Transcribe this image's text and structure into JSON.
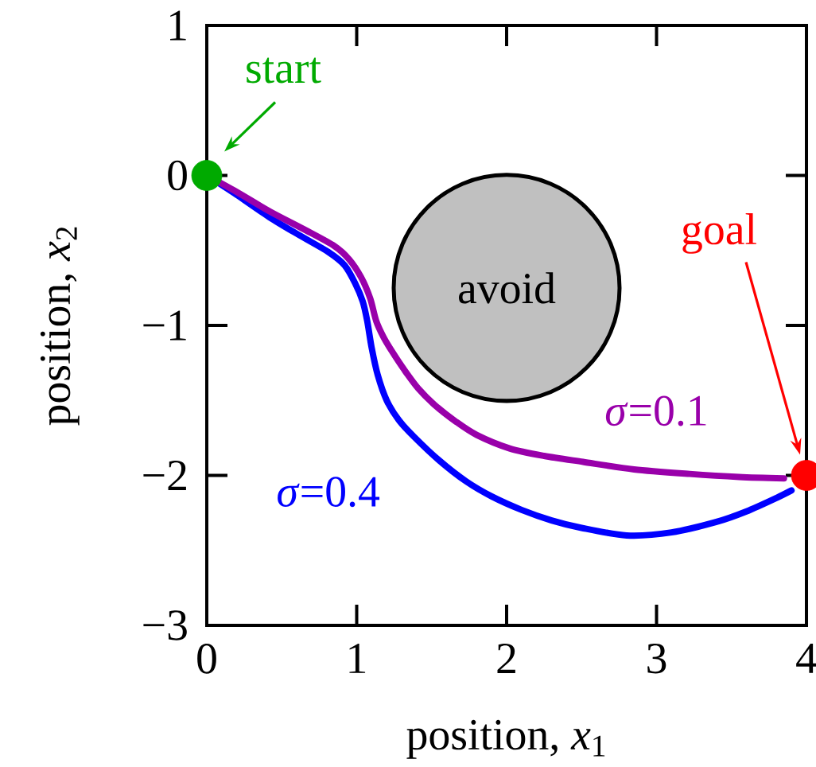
{
  "chart_data": {
    "type": "line",
    "xlabel": "position, *x*$_{1}$",
    "ylabel": "position, *x*$_{2}$",
    "xlim": [
      0,
      4
    ],
    "ylim": [
      -3,
      1
    ],
    "xticks": [
      0,
      1,
      2,
      3,
      4
    ],
    "yticks": [
      {
        "value": -3,
        "label": "−3"
      },
      {
        "value": -2,
        "label": "−2"
      },
      {
        "value": -1,
        "label": "−1"
      },
      0,
      1
    ],
    "line_style": "solid",
    "annotations": [
      {
        "text": "start",
        "x": 0,
        "y": 0
      },
      "goal"
    ],
    "series": [
      {
        "name": "avoid",
        "type": "bubble",
        "color": "#c0c0c0",
        "x": [
          2
        ],
        "values": [
          -0.75
        ],
        "sizes": [
          1
        ]
      },
      {
        "name": "*σ*=0.4",
        "color": "#0000ff",
        "x": [
          0,
          0.2,
          0.42,
          0.62,
          0.81,
          0.92,
          0.99,
          1.04,
          1.07,
          1.1,
          1.14,
          1.2,
          1.28,
          1.38,
          1.55,
          1.73,
          1.9,
          2.1,
          2.3,
          2.5,
          2.8,
          3.1,
          3.4,
          3.6,
          3.8,
          3.9
        ],
        "values": [
          0,
          -0.13,
          -0.28,
          -0.4,
          -0.51,
          -0.6,
          -0.72,
          -0.84,
          -0.97,
          -1.15,
          -1.33,
          -1.5,
          -1.63,
          -1.74,
          -1.9,
          -2.04,
          -2.14,
          -2.23,
          -2.3,
          -2.35,
          -2.4,
          -2.38,
          -2.31,
          -2.24,
          -2.15,
          -2.1
        ]
      },
      {
        "name": "*σ*=0.1",
        "color": "#9900aa",
        "x": [
          0,
          0.2,
          0.42,
          0.65,
          0.85,
          0.95,
          1.03,
          1.09,
          1.13,
          1.18,
          1.24,
          1.32,
          1.41,
          1.52,
          1.66,
          1.8,
          2.02,
          2.25,
          2.51,
          2.85,
          3.22,
          3.55,
          3.85
        ],
        "values": [
          0,
          -0.11,
          -0.24,
          -0.36,
          -0.47,
          -0.56,
          -0.68,
          -0.82,
          -0.97,
          -1.08,
          -1.18,
          -1.3,
          -1.42,
          -1.53,
          -1.64,
          -1.73,
          -1.82,
          -1.87,
          -1.91,
          -1.96,
          -1.99,
          -2.01,
          -2.02
        ]
      },
      {
        "type": "scatter",
        "marker": "circle",
        "color": "#00aa00",
        "x": [
          0
        ],
        "values": [
          0
        ]
      },
      {
        "type": "scatter",
        "marker": "circle",
        "color": "#ff0000",
        "x": [
          4
        ],
        "values": [
          -2
        ]
      }
    ]
  }
}
